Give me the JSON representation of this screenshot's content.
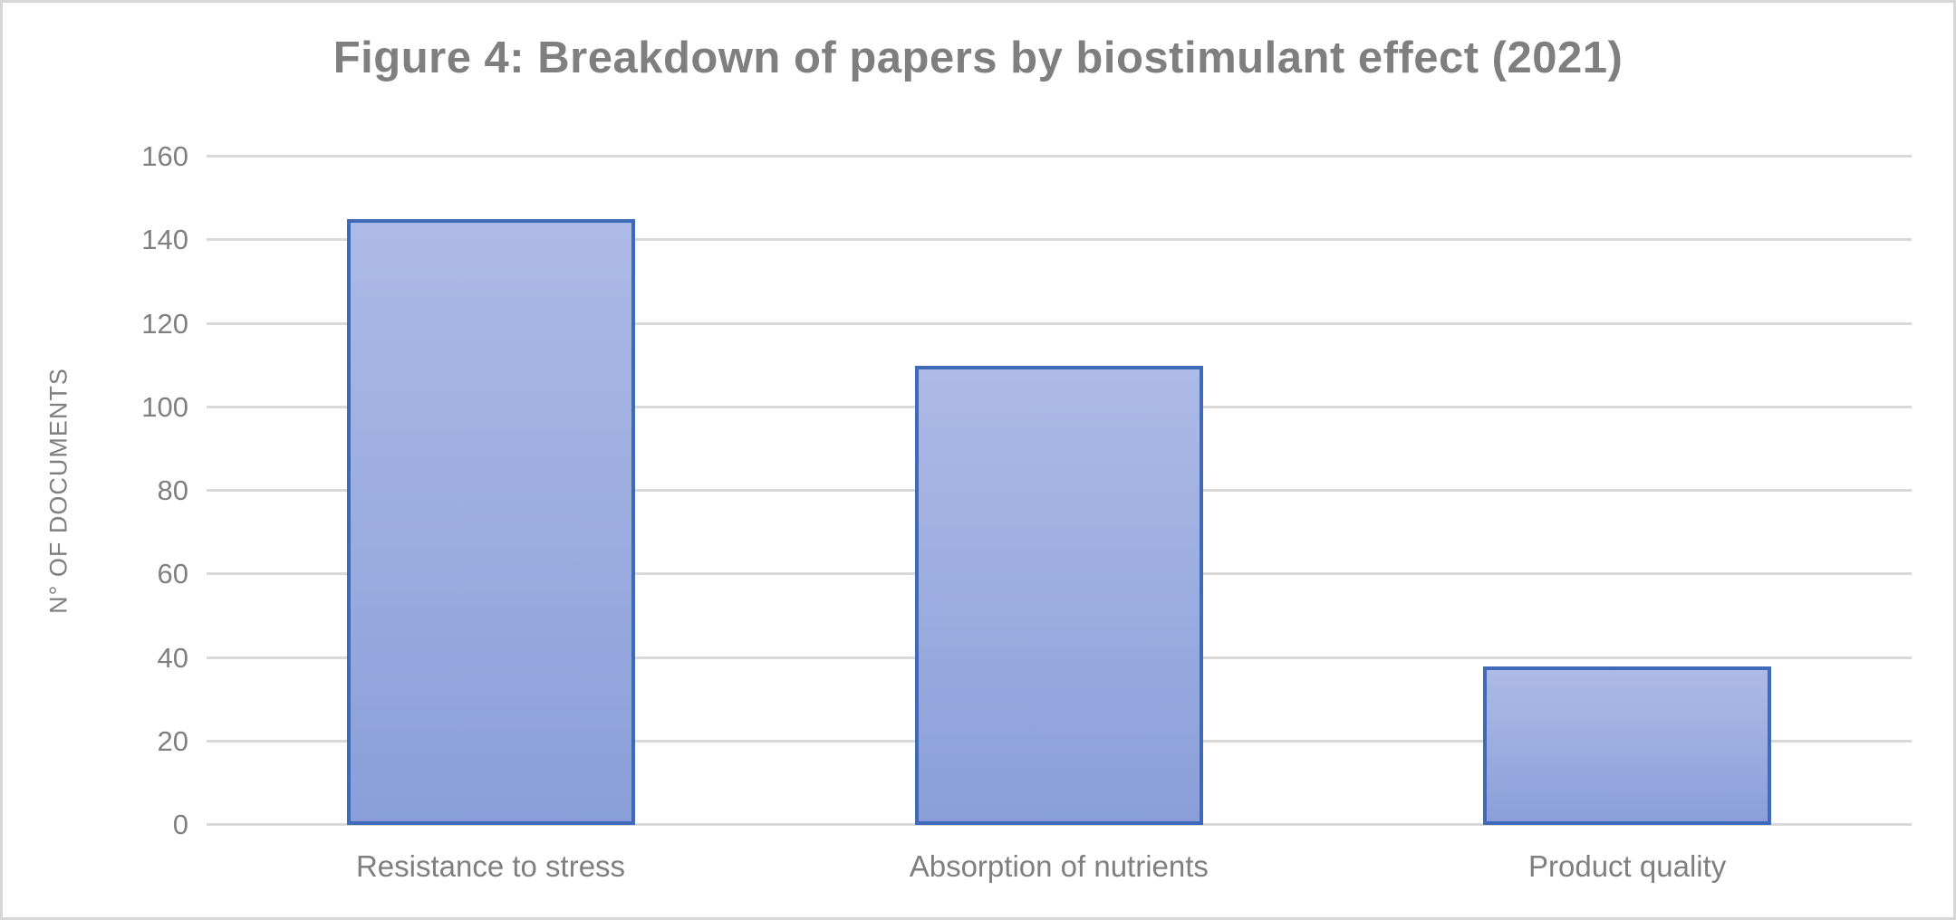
{
  "figure": {
    "title": "Figure 4: Breakdown of papers by biostimulant effect (2021)"
  },
  "chart_data": {
    "type": "bar",
    "title": "Figure 4: Breakdown of papers by biostimulant effect (2021)",
    "categories": [
      "Resistance to stress",
      "Absorption of nutrients",
      "Product quality"
    ],
    "values": [
      145,
      110,
      38
    ],
    "xlabel": "",
    "ylabel": "N° OF DOCUMENTS",
    "ylim": [
      0,
      160
    ],
    "yticks": [
      0,
      20,
      40,
      60,
      80,
      100,
      120,
      140,
      160
    ],
    "grid": true,
    "legend": false,
    "bar_width_fraction": 0.507
  },
  "colors": {
    "background": "#ffffff",
    "frame_border": "#d6d6d6",
    "gridline": "#d9d9d9",
    "text": "#7f7f7f",
    "bar_fill_top": "#adbae7",
    "bar_fill_bottom": "#8a9fd9",
    "bar_border": "#3f6ab7"
  }
}
